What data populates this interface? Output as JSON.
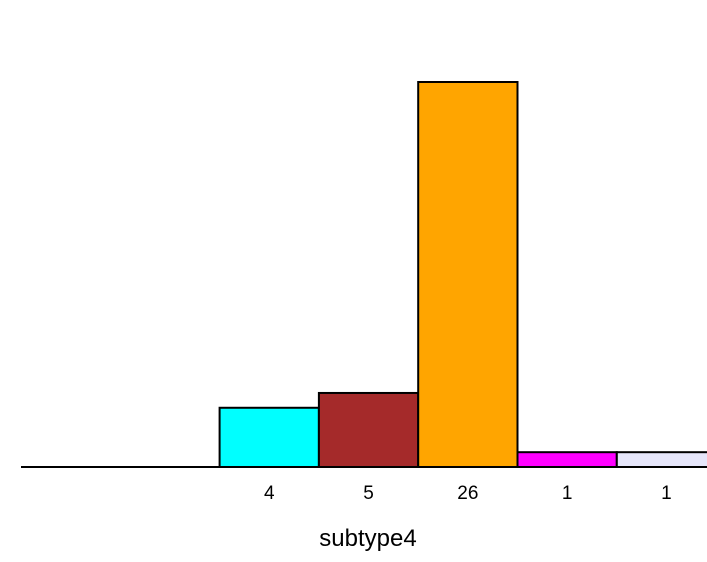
{
  "chart_data": {
    "type": "bar",
    "title": "",
    "xlabel": "subtype4",
    "ylabel": "",
    "categories": [
      "",
      "",
      "4",
      "5",
      "26",
      "1",
      "1"
    ],
    "values": [
      0,
      0,
      4,
      5,
      26,
      1,
      1
    ],
    "colors": [
      "#ffffff",
      "#ffffff",
      "#00ffff",
      "#a52a2a",
      "#ffa500",
      "#ff00ff",
      "#e6e6fa"
    ],
    "ylim": [
      0,
      26
    ],
    "grid": false,
    "legend": "none"
  }
}
